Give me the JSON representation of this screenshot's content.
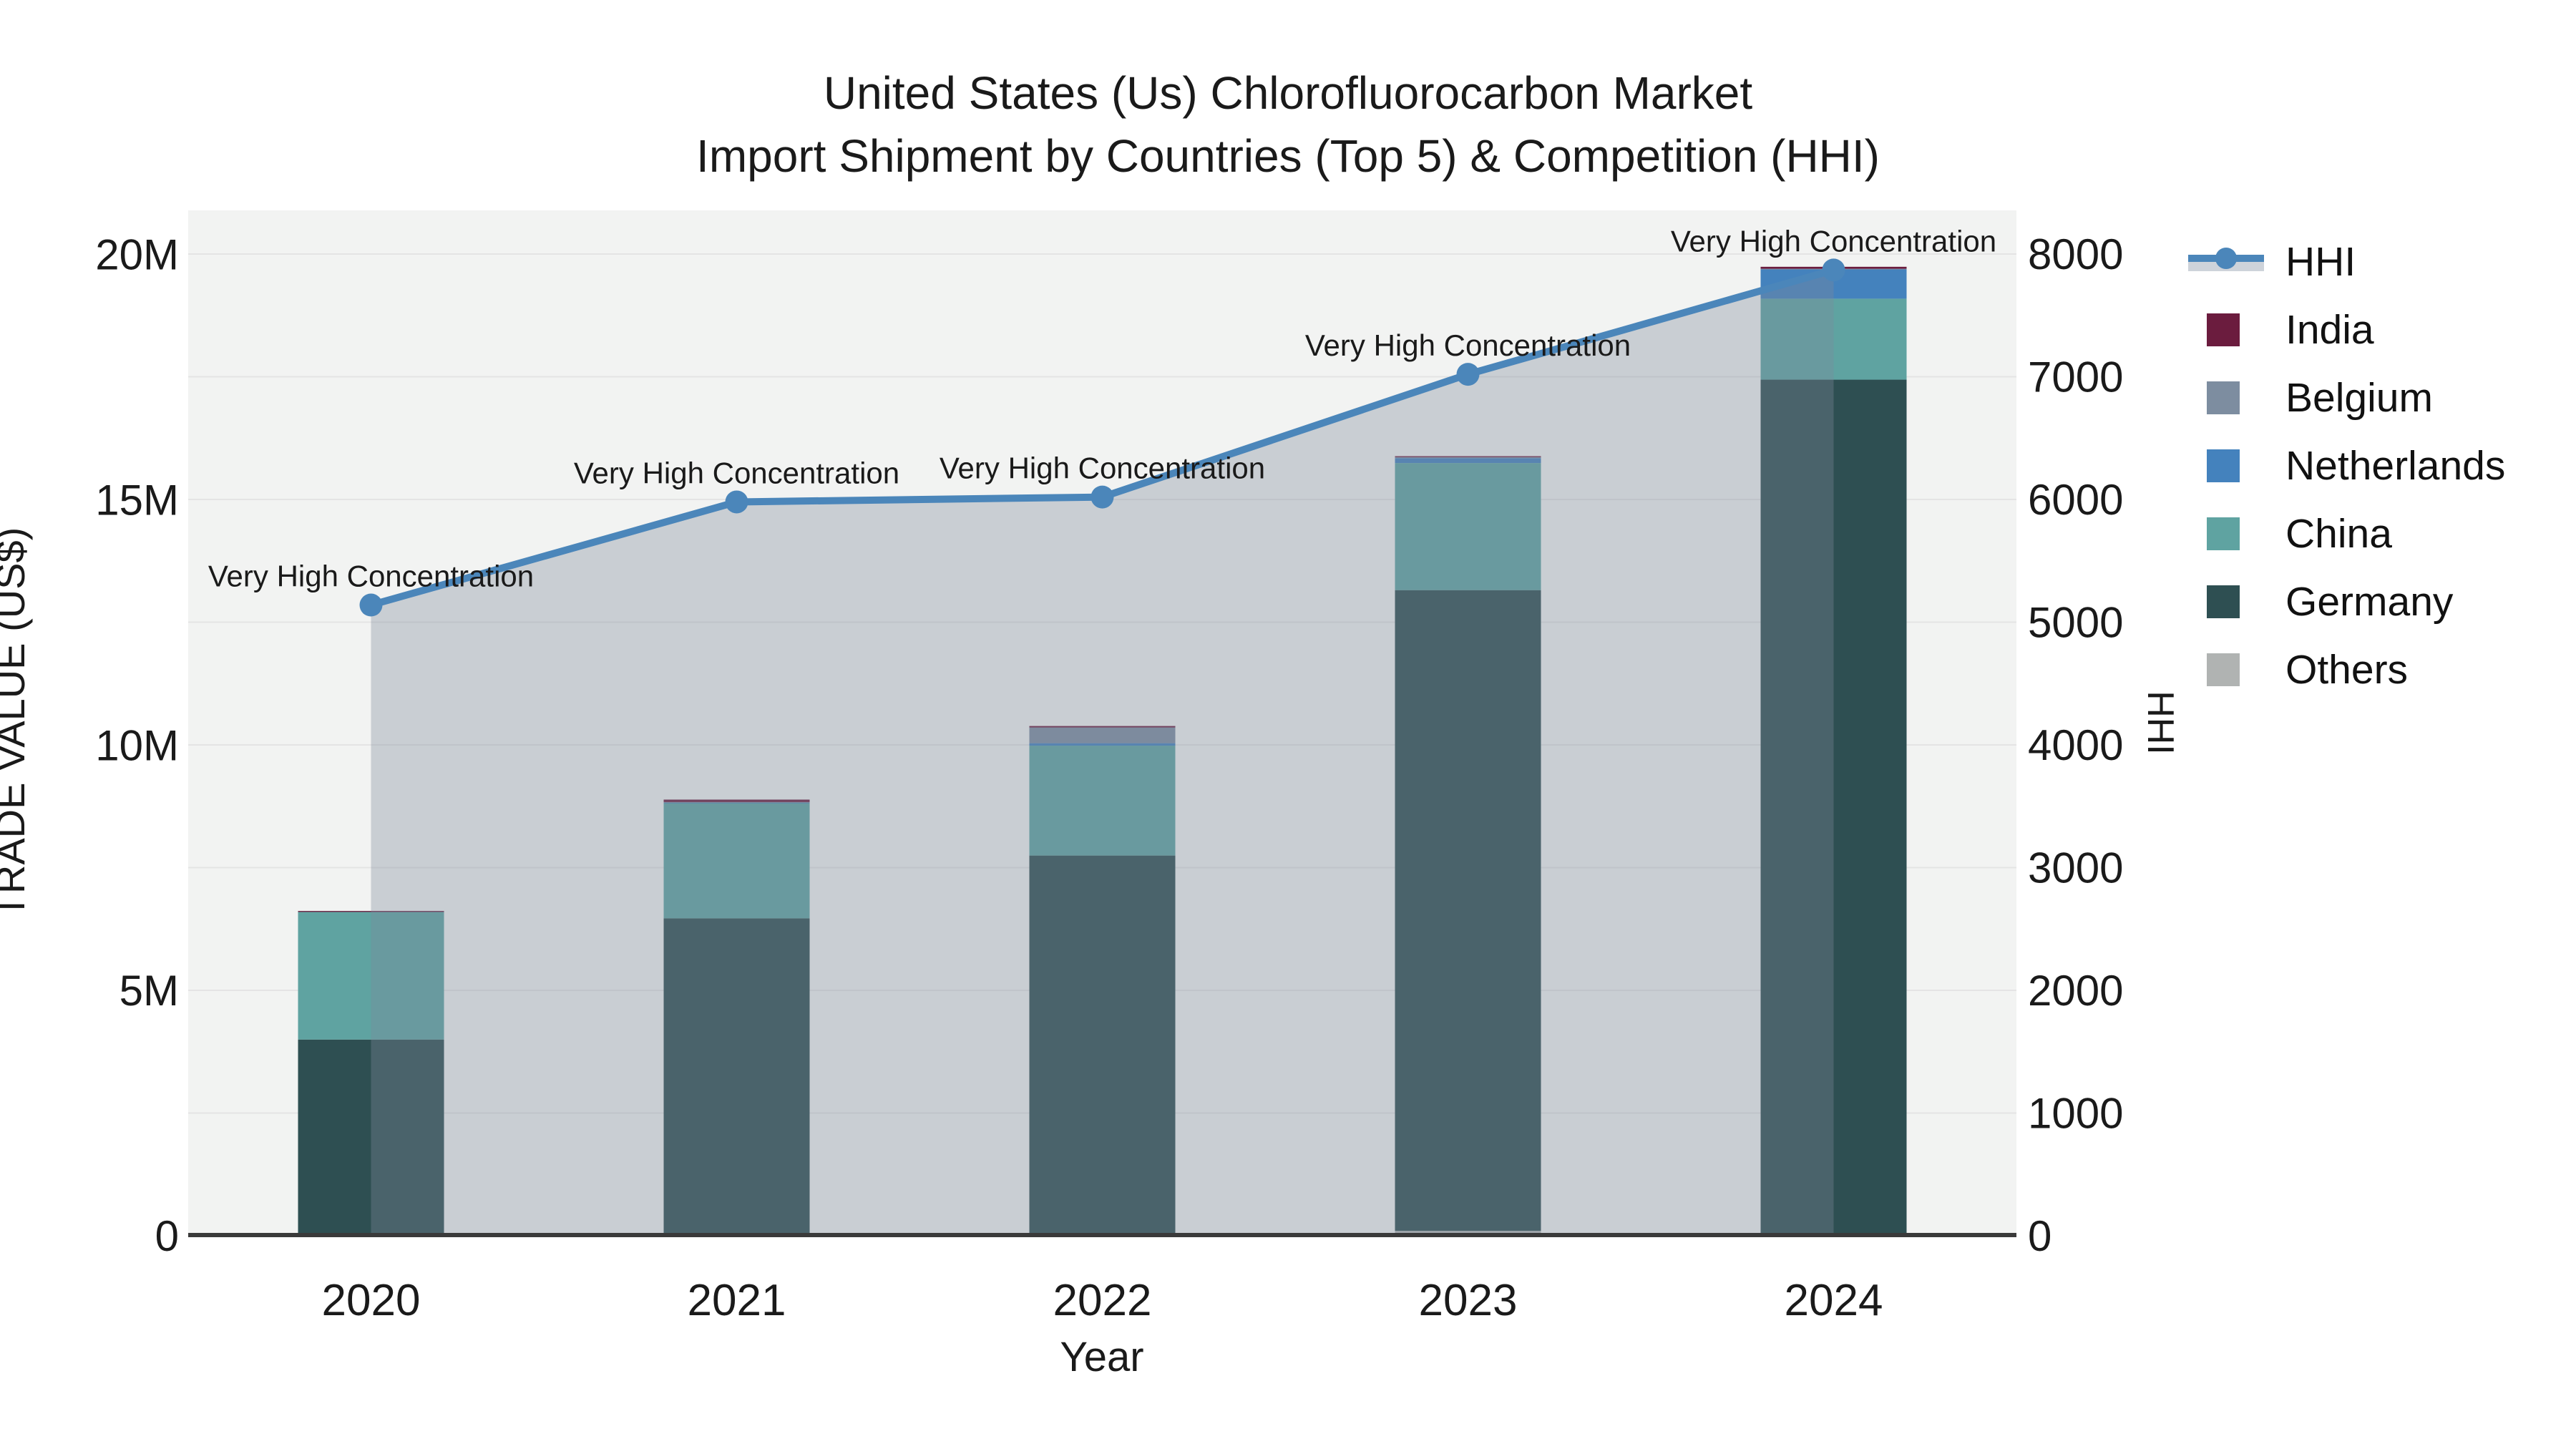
{
  "title": {
    "line1": "United States (Us) Chlorofluorocarbon Market",
    "line2": "Import Shipment by Countries (Top 5) & Competition (HHI)"
  },
  "axes": {
    "x_label": "Year",
    "y_left_label": "TRADE VALUE (US$)",
    "y_right_label": "HHI",
    "y_left_ticks": [
      {
        "v": 0,
        "label": "0"
      },
      {
        "v": 5,
        "label": "5M"
      },
      {
        "v": 10,
        "label": "10M"
      },
      {
        "v": 15,
        "label": "15M"
      },
      {
        "v": 20,
        "label": "20M"
      }
    ],
    "y_right_ticks": [
      {
        "v": 0,
        "label": "0"
      },
      {
        "v": 1000,
        "label": "1000"
      },
      {
        "v": 2000,
        "label": "2000"
      },
      {
        "v": 3000,
        "label": "3000"
      },
      {
        "v": 4000,
        "label": "4000"
      },
      {
        "v": 5000,
        "label": "5000"
      },
      {
        "v": 6000,
        "label": "6000"
      },
      {
        "v": 7000,
        "label": "7000"
      },
      {
        "v": 8000,
        "label": "8000"
      }
    ]
  },
  "legend": {
    "items": [
      {
        "label": "HHI",
        "type": "line",
        "color": "#4b86ba"
      },
      {
        "label": "India",
        "type": "swatch",
        "color": "#6b1c3e"
      },
      {
        "label": "Belgium",
        "type": "swatch",
        "color": "#7d8da0"
      },
      {
        "label": "Netherlands",
        "type": "swatch",
        "color": "#4482bd"
      },
      {
        "label": "China",
        "type": "swatch",
        "color": "#5fa3a1"
      },
      {
        "label": "Germany",
        "type": "swatch",
        "color": "#2e4f52"
      },
      {
        "label": "Others",
        "type": "swatch",
        "color": "#b0b3b2"
      }
    ]
  },
  "colors": {
    "plot_background": "#f2f3f2",
    "gridline": "#e4e4e4",
    "axis_line": "#3a3a3a",
    "hhi_line": "#4b86ba",
    "hhi_area": "rgba(125,137,155,0.35)",
    "annotation_text": "#1a1a1a"
  },
  "chart_data": {
    "type": "bar+line",
    "title": "United States (Us) Chlorofluorocarbon Market Import Shipment by Countries (Top 5) & Competition (HHI)",
    "categories": [
      "2020",
      "2021",
      "2022",
      "2023",
      "2024"
    ],
    "bar_unit": "US$ millions",
    "stack_order_bottom_to_top": [
      "Others",
      "Germany",
      "China",
      "Netherlands",
      "Belgium",
      "India"
    ],
    "series": [
      {
        "name": "India",
        "color": "#6b1c3e",
        "values": [
          0.02,
          0.05,
          0.03,
          0.02,
          0.04
        ]
      },
      {
        "name": "Belgium",
        "color": "#7d8da0",
        "values": [
          0.0,
          0.01,
          0.32,
          0.02,
          0.01
        ]
      },
      {
        "name": "Netherlands",
        "color": "#4482bd",
        "values": [
          0.0,
          0.01,
          0.05,
          0.1,
          0.6
        ]
      },
      {
        "name": "China",
        "color": "#5fa3a1",
        "values": [
          2.6,
          2.35,
          2.24,
          2.59,
          1.65
        ]
      },
      {
        "name": "Germany",
        "color": "#2e4f52",
        "values": [
          4.0,
          6.47,
          7.75,
          13.06,
          17.45
        ]
      },
      {
        "name": "Others",
        "color": "#b0b3b2",
        "values": [
          0.0,
          0.0,
          0.0,
          0.1,
          0.0
        ]
      }
    ],
    "bar_totals": [
      6.62,
      8.89,
      10.39,
      15.89,
      19.75
    ],
    "line_series": {
      "name": "HHI",
      "axis": "right",
      "values": [
        5140,
        5980,
        6020,
        7020,
        7870
      ]
    },
    "annotations": [
      "Very High Concentration",
      "Very High Concentration",
      "Very High Concentration",
      "Very High Concentration",
      "Very High Concentration"
    ],
    "xlabel": "Year",
    "ylabel_left": "TRADE VALUE (US$)",
    "ylabel_right": "HHI",
    "ylim_left_M": [
      0,
      20.9
    ],
    "ylim_right": [
      0,
      8356
    ],
    "grid": true,
    "legend_position": "right"
  }
}
